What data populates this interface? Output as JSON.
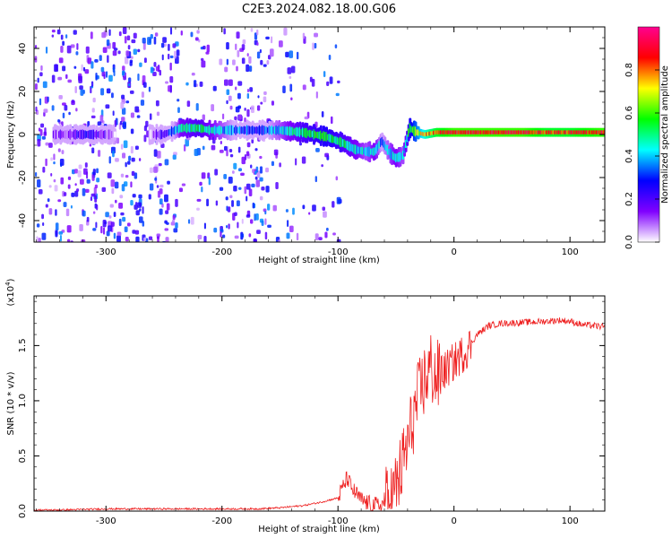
{
  "figure": {
    "title": "C2E3.2024.082.18.00.G06"
  },
  "chart_data": [
    {
      "type": "heatmap",
      "xlabel": "Height of straight line (km)",
      "ylabel": "Frequency (Hz)",
      "xlim": [
        -362,
        130
      ],
      "ylim": [
        -50,
        50
      ],
      "x_ticks": [
        -300,
        -200,
        -100,
        0,
        100
      ],
      "x_tick_labels": [
        "-300",
        "-200",
        "-100",
        "0",
        "100"
      ],
      "y_ticks": [
        -40,
        -20,
        0,
        20,
        40
      ],
      "y_tick_labels": [
        "-40",
        "-20",
        "0",
        "20",
        "40"
      ],
      "colorbar": {
        "label": "Normalized spectral amplitude",
        "range": [
          0,
          1
        ],
        "ticks": [
          0.0,
          0.2,
          0.4,
          0.6,
          0.8
        ],
        "tick_labels": [
          "0.0",
          "0.2",
          "0.4",
          "0.6",
          "0.8"
        ],
        "colors": [
          "#ffffff",
          "#8000ff",
          "#0000ff",
          "#00ffff",
          "#00ff00",
          "#ffff00",
          "#ff0000",
          "#ff0090"
        ]
      },
      "ridge": {
        "x": [
          -345,
          -330,
          -315,
          -300,
          -290,
          -265,
          -250,
          -235,
          -220,
          -210,
          -190,
          -170,
          -150,
          -130,
          -110,
          -95,
          -85,
          -75,
          -68,
          -62,
          -56,
          -50,
          -44,
          -38,
          -32,
          -25,
          -15,
          0,
          20,
          40,
          60,
          80,
          100,
          130
        ],
        "frequency": [
          0,
          0,
          0,
          0,
          0,
          0,
          0,
          3,
          3,
          2,
          2,
          2,
          2,
          1,
          -1,
          -4,
          -7,
          -8,
          -8,
          -3,
          -8,
          -11,
          -10,
          3,
          1,
          0,
          1,
          1,
          1,
          1,
          1,
          1,
          1,
          1
        ],
        "amplitude": [
          0.15,
          0.2,
          0.3,
          0.2,
          0.05,
          0.05,
          0.25,
          0.5,
          0.55,
          0.5,
          0.4,
          0.35,
          0.45,
          0.55,
          0.6,
          0.55,
          0.5,
          0.45,
          0.5,
          0.4,
          0.45,
          0.5,
          0.45,
          0.6,
          0.7,
          0.8,
          0.9,
          0.95,
          0.95,
          0.95,
          0.95,
          0.9,
          0.9,
          0.95
        ]
      },
      "background_noise": {
        "x_range": [
          -362,
          -100
        ],
        "level": 0.15
      }
    },
    {
      "type": "line",
      "xlabel": "Height of straight line (km)",
      "ylabel": "SNR (10 * v/v)",
      "y_multiplier": "(x10",
      "y_multiplier_exp": "4",
      "y_multiplier_close": ")",
      "xlim": [
        -362,
        130
      ],
      "ylim": [
        0,
        1.95
      ],
      "x_ticks": [
        -300,
        -200,
        -100,
        0,
        100
      ],
      "x_tick_labels": [
        "-300",
        "-200",
        "-100",
        "0",
        "100"
      ],
      "y_ticks": [
        0,
        0.5,
        1.0,
        1.5
      ],
      "y_tick_labels": [
        "0.0",
        "0.5",
        "1.0",
        "1.5"
      ],
      "series": [
        {
          "color": "#ee2020",
          "x": [
            -362,
            -340,
            -300,
            -260,
            -230,
            -200,
            -170,
            -150,
            -130,
            -115,
            -100,
            -92,
            -88,
            -80,
            -72,
            -65,
            -58,
            -52,
            -46,
            -40,
            -35,
            -30,
            -25,
            -20,
            -15,
            -10,
            -5,
            0,
            10,
            20,
            30,
            40,
            60,
            80,
            90,
            100,
            110,
            130
          ],
          "values": [
            0.01,
            0.01,
            0.02,
            0.02,
            0.02,
            0.02,
            0.02,
            0.03,
            0.05,
            0.08,
            0.12,
            0.3,
            0.2,
            0.1,
            0.06,
            0.05,
            0.07,
            0.15,
            0.35,
            0.6,
            0.85,
            1.05,
            1.2,
            1.3,
            1.2,
            1.25,
            1.3,
            1.35,
            1.45,
            1.6,
            1.68,
            1.7,
            1.71,
            1.72,
            1.73,
            1.72,
            1.69,
            1.67
          ]
        }
      ]
    }
  ]
}
